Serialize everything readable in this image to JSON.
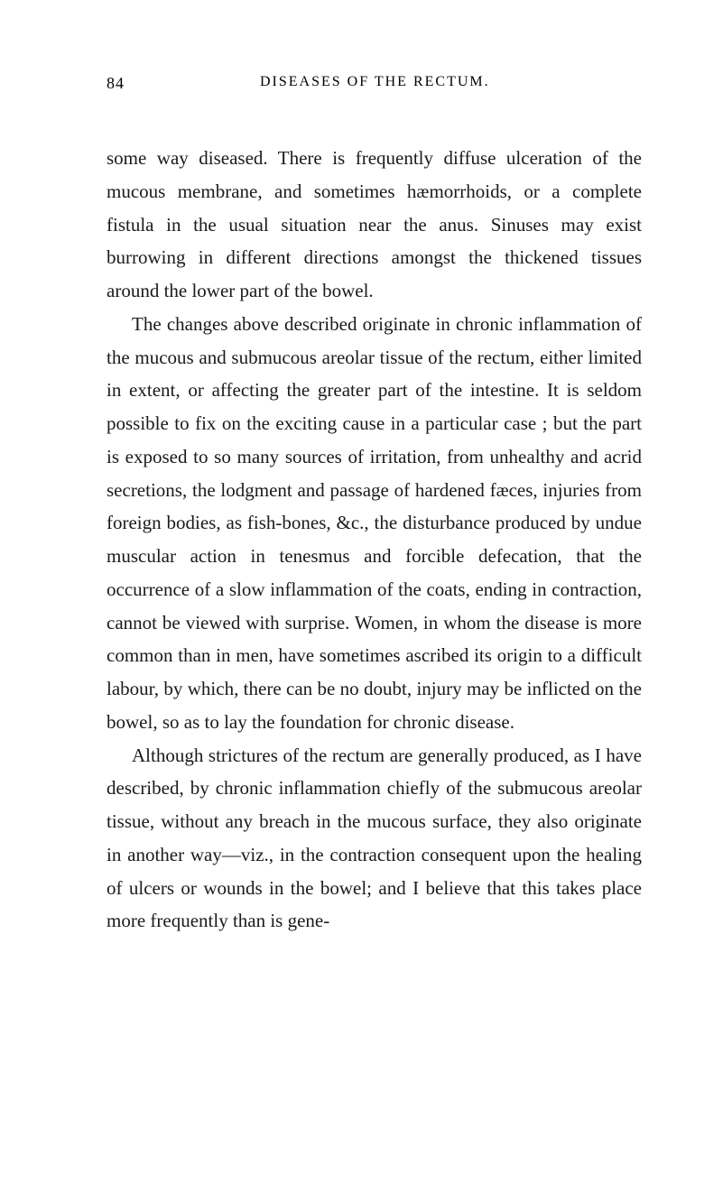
{
  "page_number": "84",
  "running_title": "DISEASES OF THE RECTUM.",
  "paragraphs": [
    "some way diseased. There is frequently diffuse ulceration of the mucous membrane, and sometimes hæmorrhoids, or a complete fistula in the usual situation near the anus. Sinuses may exist burrowing in different directions amongst the thickened tissues around the lower part of the bowel.",
    "The changes above described originate in chronic inflammation of the mucous and submucous areolar tissue of the rectum, either limited in extent, or affecting the greater part of the intestine. It is seldom possible to fix on the exciting cause in a particular case ; but the part is exposed to so many sources of irritation, from unhealthy and acrid secretions, the lodgment and passage of hardened fæces, injuries from foreign bodies, as fish-bones, &c., the disturbance produced by undue muscular action in tenesmus and forcible defecation, that the occurrence of a slow inflammation of the coats, ending in contraction, cannot be viewed with surprise. Women, in whom the disease is more common than in men, have sometimes ascribed its origin to a difficult labour, by which, there can be no doubt, injury may be inflicted on the bowel, so as to lay the foundation for chronic disease.",
    "Although strictures of the rectum are generally produced, as I have described, by chronic inflammation chiefly of the submucous areolar tissue, without any breach in the mucous surface, they also originate in another way—viz., in the contraction consequent upon the healing of ulcers or wounds in the bowel; and I believe that this takes place more frequently than is gene-"
  ],
  "typography": {
    "body_fontsize": 21,
    "header_fontsize": 17,
    "line_height": 1.75,
    "font_family": "Georgia, Times New Roman, serif",
    "text_color": "#1a1a1a",
    "background_color": "#ffffff"
  }
}
